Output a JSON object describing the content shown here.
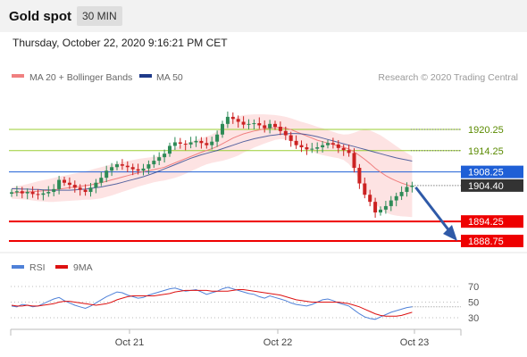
{
  "header": {
    "title": "Gold spot",
    "period_label": "30 MIN",
    "datetime": "Thursday, October 22, 2020 9:16:21 PM CET"
  },
  "legend": {
    "ma20_label": "MA 20 + Bollinger Bands",
    "ma50_label": "MA 50",
    "credit": "Research © 2020 Trading Central"
  },
  "colors": {
    "ma20": "#f08080",
    "ma50": "#1f3a8a",
    "candle_up": "#2e8b57",
    "candle_down": "#cc2222",
    "resistance": "#9acd32",
    "support": "#ee0000",
    "pivot": "#1f5fd6",
    "rsi": "#4f81d8",
    "rsi_ma": "#dd1111"
  },
  "chart_data": [
    {
      "type": "candlestick",
      "title": "Gold spot",
      "ylim": [
        1884,
        1924
      ],
      "x_ticks": [
        "Oct 21",
        "Oct 22",
        "Oct 23"
      ],
      "levels": [
        {
          "value": "1920.25",
          "kind": "resistance"
        },
        {
          "value": "1914.25",
          "kind": "resistance"
        },
        {
          "value": "1908.25",
          "kind": "pivot"
        },
        {
          "value": "1894.25",
          "kind": "support"
        },
        {
          "value": "1888.75",
          "kind": "support"
        }
      ],
      "last_price": "1904.40",
      "close_series": [
        1902.5,
        1902.8,
        1902.2,
        1902.6,
        1902.0,
        1901.8,
        1902.2,
        1902.6,
        1903.4,
        1906.0,
        1905.2,
        1904.6,
        1903.8,
        1903.2,
        1902.6,
        1903.8,
        1905.2,
        1906.6,
        1908.6,
        1909.6,
        1910.4,
        1910.0,
        1909.6,
        1909.0,
        1908.6,
        1909.2,
        1910.4,
        1911.4,
        1912.4,
        1913.4,
        1915.6,
        1916.6,
        1916.2,
        1916.0,
        1916.6,
        1917.0,
        1916.4,
        1915.8,
        1916.8,
        1918.8,
        1921.8,
        1923.8,
        1923.2,
        1922.4,
        1921.6,
        1921.8,
        1922.0,
        1921.4,
        1920.6,
        1921.8,
        1921.0,
        1919.8,
        1918.6,
        1917.0,
        1915.8,
        1915.2,
        1914.6,
        1914.8,
        1915.2,
        1915.8,
        1916.4,
        1916.0,
        1915.0,
        1914.4,
        1913.6,
        1909.4,
        1905.0,
        1901.8,
        1899.8,
        1896.8,
        1897.6,
        1898.6,
        1900.2,
        1901.4,
        1902.6,
        1904.0,
        1904.4
      ],
      "ma20": [
        1902.3,
        1902.4,
        1902.5,
        1902.6,
        1902.7,
        1902.8,
        1902.9,
        1903.0,
        1903.2,
        1903.4,
        1903.6,
        1903.8,
        1904.0,
        1904.2,
        1904.4,
        1904.6,
        1904.9,
        1905.2,
        1905.6,
        1906.0,
        1906.4,
        1906.8,
        1907.2,
        1907.6,
        1908.0,
        1908.3,
        1908.6,
        1908.9,
        1909.2,
        1909.6,
        1910.2,
        1910.8,
        1911.4,
        1912.0,
        1912.6,
        1913.2,
        1913.8,
        1914.3,
        1914.8,
        1915.4,
        1916.2,
        1917.0,
        1917.8,
        1918.4,
        1919.0,
        1919.4,
        1919.8,
        1920.1,
        1920.4,
        1920.6,
        1920.8,
        1920.8,
        1920.6,
        1920.2,
        1919.6,
        1919.0,
        1918.4,
        1917.8,
        1917.2,
        1916.8,
        1916.4,
        1916.0,
        1915.6,
        1915.2,
        1914.7,
        1913.9,
        1912.9,
        1911.8,
        1910.6,
        1909.3,
        1908.2,
        1907.2,
        1906.4,
        1905.7,
        1905.1,
        1904.6,
        1904.1
      ],
      "ma50": [
        1903.5,
        1903.5,
        1903.4,
        1903.4,
        1903.3,
        1903.3,
        1903.2,
        1903.2,
        1903.1,
        1903.1,
        1903.1,
        1903.1,
        1903.2,
        1903.3,
        1903.4,
        1903.6,
        1903.8,
        1904.0,
        1904.3,
        1904.6,
        1904.9,
        1905.3,
        1905.7,
        1906.1,
        1906.5,
        1906.9,
        1907.4,
        1907.9,
        1908.5,
        1909.1,
        1909.7,
        1910.3,
        1910.9,
        1911.5,
        1912.1,
        1912.6,
        1913.1,
        1913.5,
        1913.9,
        1914.3,
        1914.8,
        1915.3,
        1915.8,
        1916.3,
        1916.8,
        1917.2,
        1917.6,
        1917.9,
        1918.2,
        1918.5,
        1918.7,
        1918.9,
        1919.0,
        1919.1,
        1919.1,
        1919.0,
        1918.8,
        1918.5,
        1918.2,
        1917.8,
        1917.4,
        1917.0,
        1916.6,
        1916.2,
        1915.8,
        1915.4,
        1915.0,
        1914.6,
        1914.2,
        1913.8,
        1913.4,
        1913.0,
        1912.6,
        1912.2,
        1911.9,
        1911.6,
        1911.3
      ],
      "bb_width": [
        1.6,
        1.8,
        2.0,
        2.2,
        2.5,
        2.8,
        3.0,
        3.2,
        3.4,
        3.5,
        3.6,
        3.7,
        3.8,
        3.9,
        4.0,
        4.2,
        4.3,
        4.4,
        4.4,
        4.4,
        4.3,
        4.2,
        4.1,
        4.0,
        3.9,
        3.8,
        3.7,
        3.6,
        3.6,
        3.8,
        4.0,
        4.2,
        4.3,
        4.3,
        4.2,
        4.1,
        4.0,
        3.9,
        4.0,
        4.3,
        4.8,
        5.2,
        5.5,
        5.5,
        5.3,
        5.0,
        4.7,
        4.4,
        4.1,
        3.8,
        3.5,
        3.3,
        3.2,
        3.2,
        3.3,
        3.4,
        3.6,
        3.7,
        3.8,
        3.8,
        3.7,
        3.6,
        3.5,
        3.6,
        4.2,
        5.4,
        7.0,
        8.4,
        9.4,
        10.0,
        10.4,
        10.4,
        10.2,
        9.8,
        9.4,
        9.0,
        8.6
      ]
    },
    {
      "type": "line",
      "title": "RSI",
      "ylim": [
        20,
        80
      ],
      "y_ticks": [
        "70",
        "50",
        "30"
      ],
      "series": [
        {
          "name": "RSI",
          "values": [
            45,
            44,
            47,
            46,
            44,
            45,
            48,
            51,
            54,
            56,
            52,
            49,
            46,
            44,
            42,
            45,
            49,
            53,
            57,
            60,
            63,
            62,
            59,
            57,
            55,
            56,
            59,
            61,
            63,
            65,
            67,
            68,
            66,
            64,
            65,
            66,
            63,
            60,
            62,
            64,
            67,
            69,
            67,
            65,
            63,
            61,
            60,
            57,
            55,
            58,
            56,
            54,
            52,
            49,
            47,
            46,
            45,
            47,
            50,
            53,
            54,
            52,
            49,
            47,
            45,
            40,
            35,
            31,
            29,
            28,
            31,
            34,
            37,
            39,
            41,
            43,
            44
          ]
        },
        {
          "name": "9MA",
          "values": [
            46,
            45,
            45,
            46,
            45,
            45,
            46,
            47,
            48,
            50,
            51,
            51,
            50,
            49,
            48,
            47,
            46,
            47,
            48,
            50,
            53,
            55,
            57,
            58,
            58,
            58,
            58,
            58,
            59,
            60,
            61,
            63,
            64,
            65,
            65,
            65,
            65,
            65,
            64,
            64,
            64,
            64,
            65,
            66,
            66,
            65,
            64,
            63,
            62,
            61,
            60,
            59,
            57,
            55,
            53,
            52,
            51,
            50,
            50,
            50,
            50,
            50,
            50,
            49,
            48,
            46,
            44,
            41,
            38,
            35,
            33,
            32,
            32,
            32,
            33,
            35,
            37
          ]
        }
      ]
    }
  ]
}
